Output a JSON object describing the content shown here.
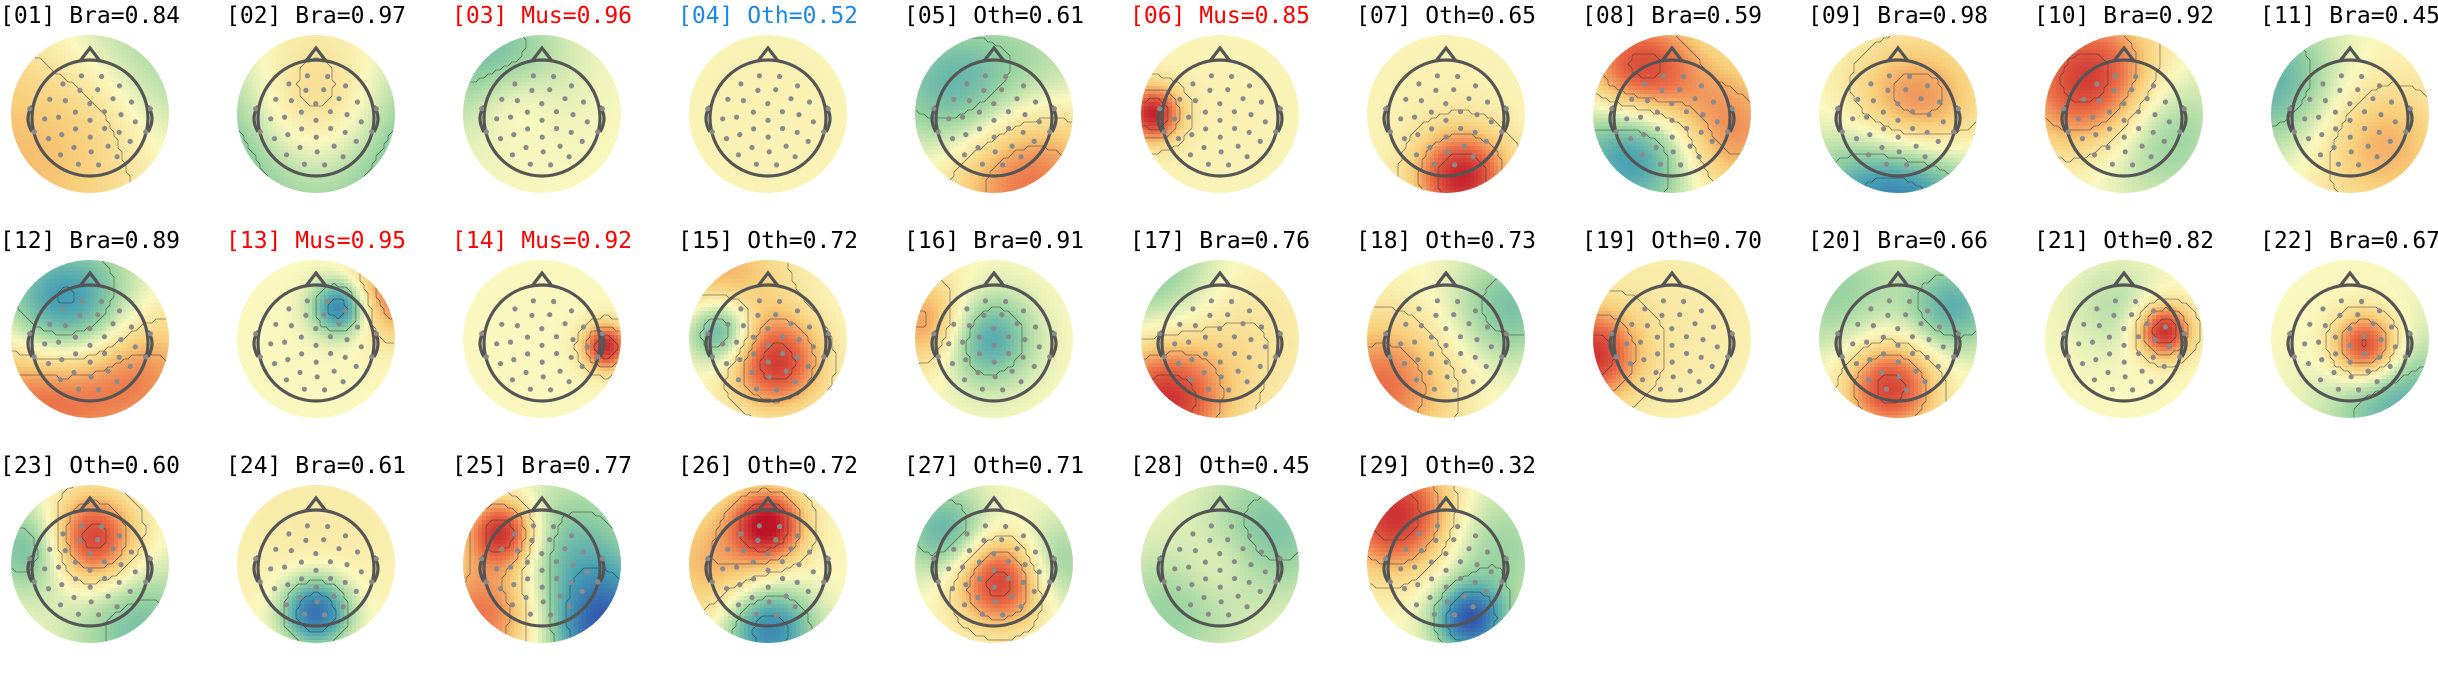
{
  "colors": {
    "default": "#000000",
    "muscle": "#ff0000",
    "other_highlight": "#1e88e5"
  },
  "components": [
    {
      "label": "[01] Bra=0.84",
      "color": "default",
      "blobs": [
        [
          0.2,
          0.6,
          0.5,
          0.9
        ],
        [
          0.8,
          0.2,
          -0.6,
          0.6
        ],
        [
          0.5,
          0.5,
          0.2,
          0.3
        ]
      ]
    },
    {
      "label": "[02] Bra=0.97",
      "color": "default",
      "blobs": [
        [
          0.5,
          0.5,
          0.8,
          0.4
        ],
        [
          0.0,
          0.7,
          -0.6,
          0.5
        ],
        [
          1.0,
          0.7,
          -0.6,
          0.5
        ]
      ]
    },
    {
      "label": "[03] Mus=0.96",
      "color": "muscle",
      "blobs": [
        [
          0.2,
          0.2,
          -0.5,
          0.3
        ],
        [
          0.3,
          0.4,
          0.3,
          0.2
        ]
      ]
    },
    {
      "label": "[04] Oth=0.52",
      "color": "other_highlight",
      "blobs": [
        [
          0.5,
          0.5,
          0.05,
          0.6
        ]
      ]
    },
    {
      "label": "[05] Oth=0.61",
      "color": "default",
      "blobs": [
        [
          0.25,
          0.35,
          -0.5,
          0.3
        ],
        [
          0.7,
          0.9,
          0.6,
          0.35
        ],
        [
          0.8,
          0.2,
          -0.2,
          0.3
        ]
      ]
    },
    {
      "label": "[06] Mus=0.85",
      "color": "muscle",
      "blobs": [
        [
          0.08,
          0.5,
          0.9,
          0.12
        ],
        [
          0.5,
          0.5,
          0.05,
          0.5
        ]
      ]
    },
    {
      "label": "[07] Oth=0.65",
      "color": "default",
      "blobs": [
        [
          0.6,
          0.9,
          0.9,
          0.2
        ],
        [
          0.5,
          0.4,
          0.05,
          0.5
        ]
      ]
    },
    {
      "label": "[08] Bra=0.59",
      "color": "default",
      "blobs": [
        [
          0.3,
          0.25,
          0.9,
          0.25
        ],
        [
          0.3,
          0.7,
          -0.8,
          0.3
        ],
        [
          0.8,
          0.6,
          0.6,
          0.3
        ]
      ]
    },
    {
      "label": "[09] Bra=0.98",
      "color": "default",
      "blobs": [
        [
          0.6,
          0.5,
          0.7,
          0.3
        ],
        [
          0.5,
          1.0,
          -0.9,
          0.35
        ]
      ]
    },
    {
      "label": "[10] Bra=0.92",
      "color": "default",
      "blobs": [
        [
          0.3,
          0.3,
          0.9,
          0.3
        ],
        [
          0.7,
          0.6,
          -0.4,
          0.3
        ]
      ]
    },
    {
      "label": "[11] Bra=0.45",
      "color": "default",
      "blobs": [
        [
          0.0,
          0.3,
          -0.5,
          0.3
        ],
        [
          0.7,
          0.7,
          0.4,
          0.3
        ]
      ]
    },
    {
      "label": "[12] Bra=0.89",
      "color": "default",
      "blobs": [
        [
          0.35,
          0.35,
          -0.9,
          0.3
        ],
        [
          0.2,
          0.8,
          0.7,
          0.35
        ],
        [
          0.8,
          0.7,
          0.5,
          0.3
        ]
      ]
    },
    {
      "label": "[13] Mus=0.95",
      "color": "muscle",
      "blobs": [
        [
          0.65,
          0.3,
          -0.8,
          0.12
        ],
        [
          1.0,
          0.2,
          0.6,
          0.2
        ]
      ]
    },
    {
      "label": "[14] Mus=0.92",
      "color": "muscle",
      "blobs": [
        [
          0.9,
          0.55,
          0.9,
          0.1
        ]
      ]
    },
    {
      "label": "[15] Oth=0.72",
      "color": "default",
      "blobs": [
        [
          0.2,
          0.45,
          -0.7,
          0.15
        ],
        [
          0.55,
          0.65,
          0.8,
          0.2
        ],
        [
          0.2,
          0.1,
          0.4,
          0.3
        ]
      ]
    },
    {
      "label": "[16] Bra=0.91",
      "color": "default",
      "blobs": [
        [
          0.45,
          0.5,
          -0.6,
          0.2
        ],
        [
          0.1,
          0.4,
          0.5,
          0.2
        ]
      ]
    },
    {
      "label": "[17] Bra=0.76",
      "color": "default",
      "blobs": [
        [
          0.1,
          0.1,
          -0.4,
          0.3
        ],
        [
          0.15,
          0.9,
          0.8,
          0.25
        ],
        [
          0.5,
          0.5,
          0.2,
          0.4
        ]
      ]
    },
    {
      "label": "[18] Oth=0.73",
      "color": "default",
      "blobs": [
        [
          0.1,
          0.8,
          0.6,
          0.3
        ],
        [
          0.9,
          0.3,
          -0.4,
          0.25
        ]
      ]
    },
    {
      "label": "[19] Oth=0.70",
      "color": "default",
      "blobs": [
        [
          0.0,
          0.6,
          0.8,
          0.2
        ],
        [
          0.5,
          0.4,
          0.1,
          0.5
        ]
      ]
    },
    {
      "label": "[20] Bra=0.66",
      "color": "default",
      "blobs": [
        [
          0.45,
          0.8,
          0.8,
          0.2
        ],
        [
          0.85,
          0.3,
          -0.5,
          0.2
        ],
        [
          0.1,
          0.2,
          -0.3,
          0.3
        ]
      ]
    },
    {
      "label": "[21] Oth=0.82",
      "color": "default",
      "blobs": [
        [
          0.75,
          0.45,
          0.9,
          0.12
        ],
        [
          0.45,
          0.3,
          -0.2,
          0.2
        ]
      ]
    },
    {
      "label": "[22] Bra=0.67",
      "color": "default",
      "blobs": [
        [
          0.6,
          0.55,
          0.9,
          0.15
        ],
        [
          0.8,
          0.9,
          -0.5,
          0.3
        ]
      ]
    },
    {
      "label": "[23] Oth=0.60",
      "color": "default",
      "blobs": [
        [
          0.5,
          0.35,
          0.9,
          0.2
        ],
        [
          0.15,
          0.4,
          -0.5,
          0.2
        ],
        [
          0.8,
          0.9,
          -0.4,
          0.3
        ]
      ]
    },
    {
      "label": "[24] Bra=0.61",
      "color": "default",
      "blobs": [
        [
          0.5,
          0.8,
          -0.9,
          0.15
        ],
        [
          0.5,
          0.3,
          0.1,
          0.5
        ]
      ]
    },
    {
      "label": "[25] Bra=0.77",
      "color": "default",
      "blobs": [
        [
          0.25,
          0.3,
          0.9,
          0.15
        ],
        [
          0.15,
          0.8,
          0.6,
          0.25
        ],
        [
          0.9,
          0.9,
          -0.9,
          0.25
        ],
        [
          0.7,
          0.4,
          -0.4,
          0.3
        ]
      ]
    },
    {
      "label": "[26] Oth=0.72",
      "color": "default",
      "blobs": [
        [
          0.5,
          0.25,
          0.9,
          0.15
        ],
        [
          0.5,
          0.9,
          -0.8,
          0.2
        ],
        [
          0.2,
          0.5,
          0.4,
          0.3
        ]
      ]
    },
    {
      "label": "[27] Oth=0.71",
      "color": "default",
      "blobs": [
        [
          0.55,
          0.6,
          0.9,
          0.2
        ],
        [
          0.2,
          0.3,
          -0.5,
          0.2
        ],
        [
          0.85,
          0.5,
          -0.4,
          0.2
        ]
      ]
    },
    {
      "label": "[28] Oth=0.45",
      "color": "default",
      "blobs": [
        [
          0.8,
          0.3,
          -0.4,
          0.3
        ],
        [
          0.2,
          0.8,
          -0.3,
          0.3
        ],
        [
          0.5,
          0.5,
          0.2,
          0.2
        ]
      ]
    },
    {
      "label": "[29] Oth=0.32",
      "color": "default",
      "blobs": [
        [
          0.2,
          0.2,
          0.9,
          0.25
        ],
        [
          0.65,
          0.85,
          -0.9,
          0.15
        ],
        [
          0.8,
          0.4,
          -0.3,
          0.3
        ]
      ]
    }
  ]
}
